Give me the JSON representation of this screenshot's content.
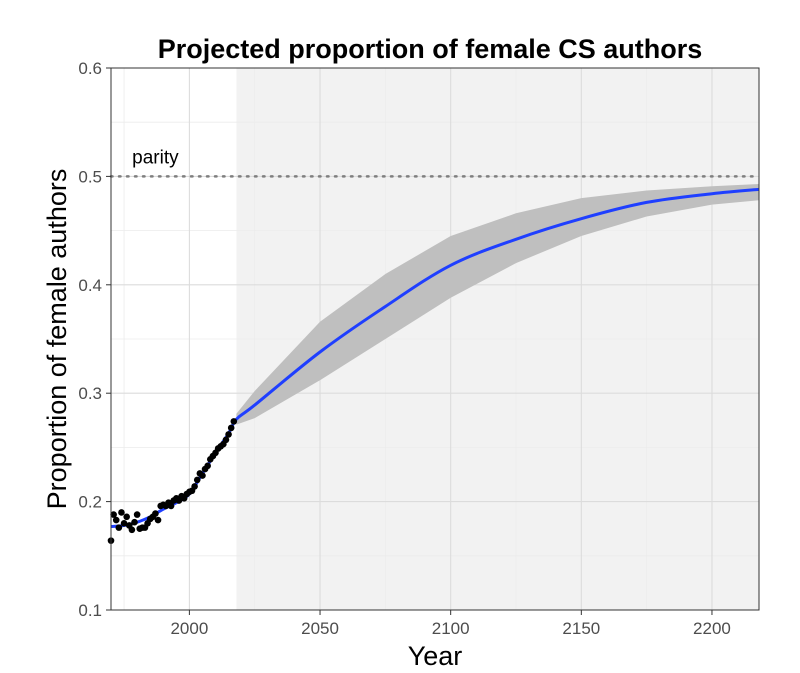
{
  "chart_data": {
    "type": "line",
    "title": "Projected proportion of female CS authors",
    "xlabel": "Year",
    "ylabel": "Proportion of female authors",
    "xlim": [
      1970,
      2218
    ],
    "ylim": [
      0.1,
      0.6
    ],
    "x_ticks": [
      2000,
      2050,
      2100,
      2150,
      2200
    ],
    "y_ticks": [
      0.1,
      0.2,
      0.3,
      0.4,
      0.5,
      0.6
    ],
    "y_tick_labels": [
      "0.1",
      "0.2",
      "0.3",
      "0.4",
      "0.5",
      "0.6"
    ],
    "grid": true,
    "projection_region_start": 2018,
    "parity": {
      "label": "parity",
      "y": 0.5,
      "style": "dotted"
    },
    "colors": {
      "fit_line": "#1f3fff",
      "confidence_band": "#bfbfbf",
      "observed_points": "#000000",
      "projection_background": "#f2f2f2",
      "parity_line": "#7f7f7f"
    },
    "observed": {
      "x": [
        1970,
        1971,
        1972,
        1973,
        1974,
        1975,
        1976,
        1977,
        1978,
        1979,
        1980,
        1981,
        1982,
        1983,
        1984,
        1985,
        1986,
        1987,
        1988,
        1989,
        1990,
        1991,
        1992,
        1993,
        1994,
        1995,
        1996,
        1997,
        1998,
        1999,
        2000,
        2001,
        2002,
        2003,
        2004,
        2005,
        2006,
        2007,
        2008,
        2009,
        2010,
        2011,
        2012,
        2013,
        2014,
        2015,
        2016,
        2017
      ],
      "y": [
        0.164,
        0.188,
        0.183,
        0.176,
        0.19,
        0.18,
        0.186,
        0.178,
        0.174,
        0.181,
        0.188,
        0.175,
        0.176,
        0.176,
        0.18,
        0.184,
        0.186,
        0.189,
        0.183,
        0.196,
        0.197,
        0.196,
        0.199,
        0.196,
        0.201,
        0.203,
        0.201,
        0.205,
        0.203,
        0.207,
        0.209,
        0.21,
        0.214,
        0.22,
        0.226,
        0.224,
        0.23,
        0.233,
        0.239,
        0.242,
        0.245,
        0.249,
        0.251,
        0.253,
        0.257,
        0.262,
        0.268,
        0.274
      ]
    },
    "fit": {
      "x": [
        1970,
        1975,
        1980,
        1985,
        1990,
        1995,
        2000,
        2005,
        2010,
        2015,
        2018,
        2025,
        2050,
        2075,
        2100,
        2125,
        2150,
        2175,
        2200,
        2218
      ],
      "y": [
        0.177,
        0.178,
        0.181,
        0.186,
        0.193,
        0.199,
        0.207,
        0.226,
        0.245,
        0.263,
        0.276,
        0.289,
        0.338,
        0.38,
        0.418,
        0.442,
        0.461,
        0.476,
        0.484,
        0.488
      ]
    },
    "confidence_band": {
      "x": [
        2018,
        2025,
        2050,
        2075,
        2100,
        2125,
        2150,
        2175,
        2200,
        2218
      ],
      "lower": [
        0.271,
        0.277,
        0.312,
        0.35,
        0.388,
        0.42,
        0.445,
        0.463,
        0.474,
        0.478
      ],
      "upper": [
        0.281,
        0.302,
        0.366,
        0.41,
        0.445,
        0.466,
        0.48,
        0.487,
        0.491,
        0.493
      ]
    }
  }
}
